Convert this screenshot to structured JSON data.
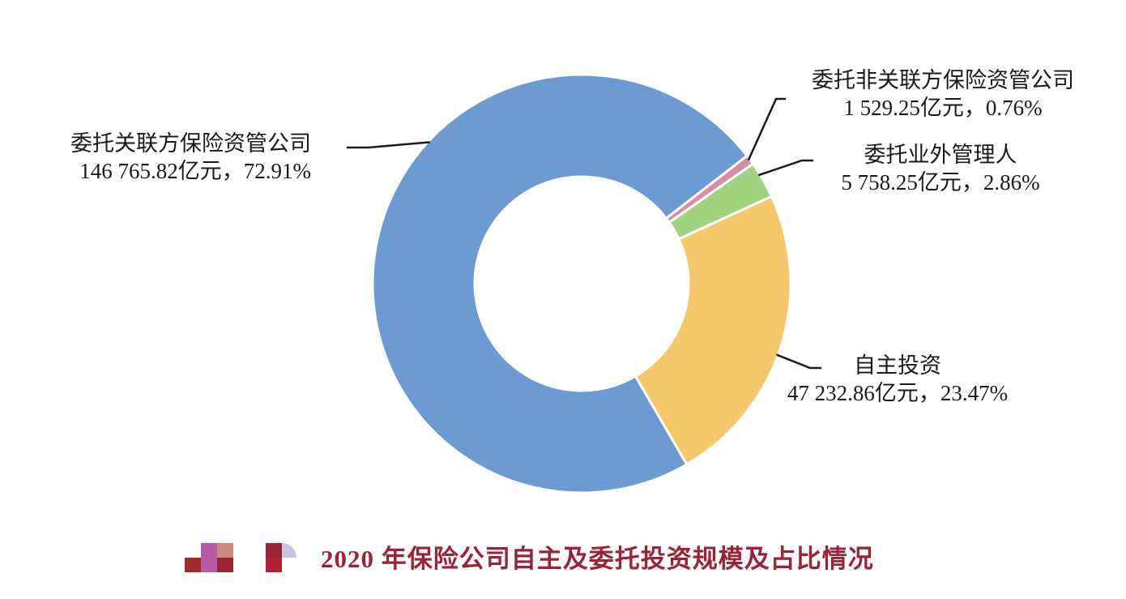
{
  "caption": {
    "title": "2020 年保险公司自主及委托投资规模及占比情况"
  },
  "chart_data": {
    "type": "pie",
    "unit": "亿元",
    "title": "2020 年保险公司自主及委托投资规模及占比情况",
    "slices": [
      {
        "name": "委托关联方保险资管公司",
        "value": 146765.82,
        "value_label": "146 765.82亿元，72.91%",
        "percent": 72.91,
        "color": "#6b9bd1"
      },
      {
        "name": "委托非关联方保险资管公司",
        "value": 1529.25,
        "value_label": "1 529.25亿元，0.76%",
        "percent": 0.76,
        "color": "#d98ba3"
      },
      {
        "name": "委托业外管理人",
        "value": 5758.25,
        "value_label": "5 758.25亿元，2.86%",
        "percent": 2.86,
        "color": "#9fd37f"
      },
      {
        "name": "自主投资",
        "value": 47232.86,
        "value_label": "47 232.86亿元，23.47%",
        "percent": 23.47,
        "color": "#f5c96b"
      }
    ]
  }
}
